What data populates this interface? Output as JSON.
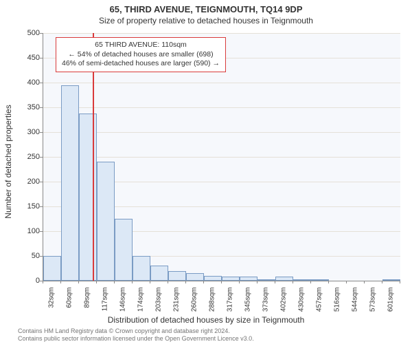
{
  "chart": {
    "type": "histogram",
    "title": "65, THIRD AVENUE, TEIGNMOUTH, TQ14 9DP",
    "subtitle": "Size of property relative to detached houses in Teignmouth",
    "background_color": "#f6f8fc",
    "grid_color": "#e5e0d8",
    "axis_color": "#888888",
    "bar_fill_color": "#dce8f6",
    "bar_border_color": "#7a9bc4",
    "refline_color": "#d93a3a",
    "title_fontsize": 13,
    "subtitle_fontsize": 12,
    "axis_label_fontsize": 12,
    "tick_fontsize": 11,
    "y_axis": {
      "label": "Number of detached properties",
      "min": 0,
      "max": 500,
      "step": 50
    },
    "x_axis": {
      "label": "Distribution of detached houses by size in Teignmouth",
      "tick_labels": [
        "32sqm",
        "60sqm",
        "89sqm",
        "117sqm",
        "146sqm",
        "174sqm",
        "203sqm",
        "231sqm",
        "260sqm",
        "288sqm",
        "317sqm",
        "345sqm",
        "373sqm",
        "402sqm",
        "430sqm",
        "457sqm",
        "516sqm",
        "544sqm",
        "573sqm",
        "601sqm"
      ]
    },
    "bars": [
      50,
      395,
      338,
      240,
      125,
      50,
      30,
      20,
      15,
      10,
      8,
      8,
      3,
      8,
      3,
      2,
      0,
      0,
      0,
      2
    ],
    "reference_line_index": 2.75,
    "annotation": {
      "line1": "65 THIRD AVENUE: 110sqm",
      "line2": "← 54% of detached houses are smaller (698)",
      "line3": "46% of semi-detached houses are larger (590) →"
    },
    "footer": {
      "line1": "Contains HM Land Registry data © Crown copyright and database right 2024.",
      "line2": "Contains public sector information licensed under the Open Government Licence v3.0."
    }
  }
}
